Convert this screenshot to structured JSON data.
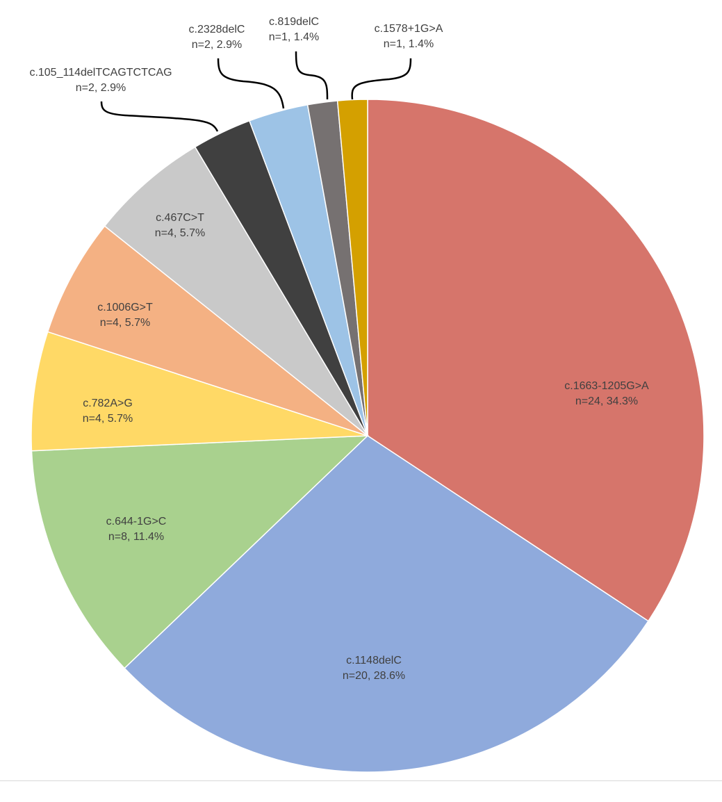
{
  "chart_data": {
    "type": "pie",
    "title": "",
    "start_angle_deg": 0,
    "direction": "clockwise",
    "slices": [
      {
        "label": "c.1663-1205G>A",
        "n": 24,
        "percent_label": "n=24, 34.3%",
        "value": 34.3,
        "color": "#D6756B"
      },
      {
        "label": "c.1148delC",
        "n": 20,
        "percent_label": "n=20, 28.6%",
        "value": 28.6,
        "color": "#8FAADC"
      },
      {
        "label": "c.644-1G>C",
        "n": 8,
        "percent_label": "n=8, 11.4%",
        "value": 11.4,
        "color": "#A9D18E"
      },
      {
        "label": "c.782A>G",
        "n": 4,
        "percent_label": "n=4, 5.7%",
        "value": 5.7,
        "color": "#FFD966"
      },
      {
        "label": "c.1006G>T",
        "n": 4,
        "percent_label": "n=4, 5.7%",
        "value": 5.7,
        "color": "#F4B183"
      },
      {
        "label": "c.467C>T",
        "n": 4,
        "percent_label": "n=4, 5.7%",
        "value": 5.7,
        "color": "#C9C9C9"
      },
      {
        "label": "c.105_114delTCAGTCTCAG",
        "n": 2,
        "percent_label": "n=2, 2.9%",
        "value": 2.9,
        "color": "#404040"
      },
      {
        "label": "c.2328delC",
        "n": 2,
        "percent_label": "n=2, 2.9%",
        "value": 2.9,
        "color": "#9DC3E6"
      },
      {
        "label": "c.819delC",
        "n": 1,
        "percent_label": "n=1, 1.4%",
        "value": 1.4,
        "color": "#767171"
      },
      {
        "label": "c.1578+1G>A",
        "n": 1,
        "percent_label": "n=1, 1.4%",
        "value": 1.4,
        "color": "#D4A000"
      }
    ],
    "legend": "none",
    "slice_border_color": "#ffffff",
    "leader_line_color": "#000000"
  }
}
